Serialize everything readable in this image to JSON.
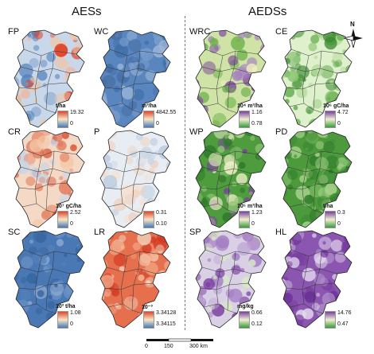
{
  "headers": {
    "left": "AESs",
    "right": "AEDSs"
  },
  "panels": [
    {
      "label": "FP",
      "unit": "t/ha",
      "max": "19.32",
      "min": "0",
      "scheme": "bluered"
    },
    {
      "label": "WC",
      "unit": "m³/ha",
      "max": "4842.55",
      "min": "0",
      "scheme": "blue"
    },
    {
      "label": "WRC",
      "unit": "10⁴ m³/ha",
      "max": "1.16",
      "min": "0.78",
      "scheme": "purplegreen"
    },
    {
      "label": "CE",
      "unit": "10⁶ gC/ha",
      "max": "4.72",
      "min": "0",
      "scheme": "green"
    },
    {
      "label": "CR",
      "unit": "10⁷ gC/ha",
      "max": "2.52",
      "min": "0",
      "scheme": "redwhite"
    },
    {
      "label": "P",
      "unit": "",
      "max": "0.31",
      "min": "0.10",
      "scheme": "pale"
    },
    {
      "label": "WP",
      "unit": "10⁵ m³/ha",
      "max": "1.23",
      "min": "0",
      "scheme": "greenwp"
    },
    {
      "label": "PD",
      "unit": "t/ha",
      "max": "0.3",
      "min": "0",
      "scheme": "greendark"
    },
    {
      "label": "SC",
      "unit": "10³ t/ha",
      "max": "1.08",
      "min": "0",
      "scheme": "bluedeep"
    },
    {
      "label": "LR",
      "unit": "10⁻³",
      "max": "3.34128",
      "min": "3.34115",
      "scheme": "red"
    },
    {
      "label": "SP",
      "unit": "mg/kg",
      "max": "0.66",
      "min": "0.12",
      "scheme": "purplesp"
    },
    {
      "label": "HL",
      "unit": "",
      "max": "14.76",
      "min": "0.47",
      "scheme": "purplehl"
    }
  ],
  "scalebar": {
    "ticks": [
      "0",
      "150",
      "300 km"
    ]
  },
  "compass": {
    "label": "N"
  },
  "colors": {
    "blue": "#4a78b5",
    "red": "#e0472d",
    "green": "#3a9a3a",
    "purple": "#7b3fa0"
  }
}
